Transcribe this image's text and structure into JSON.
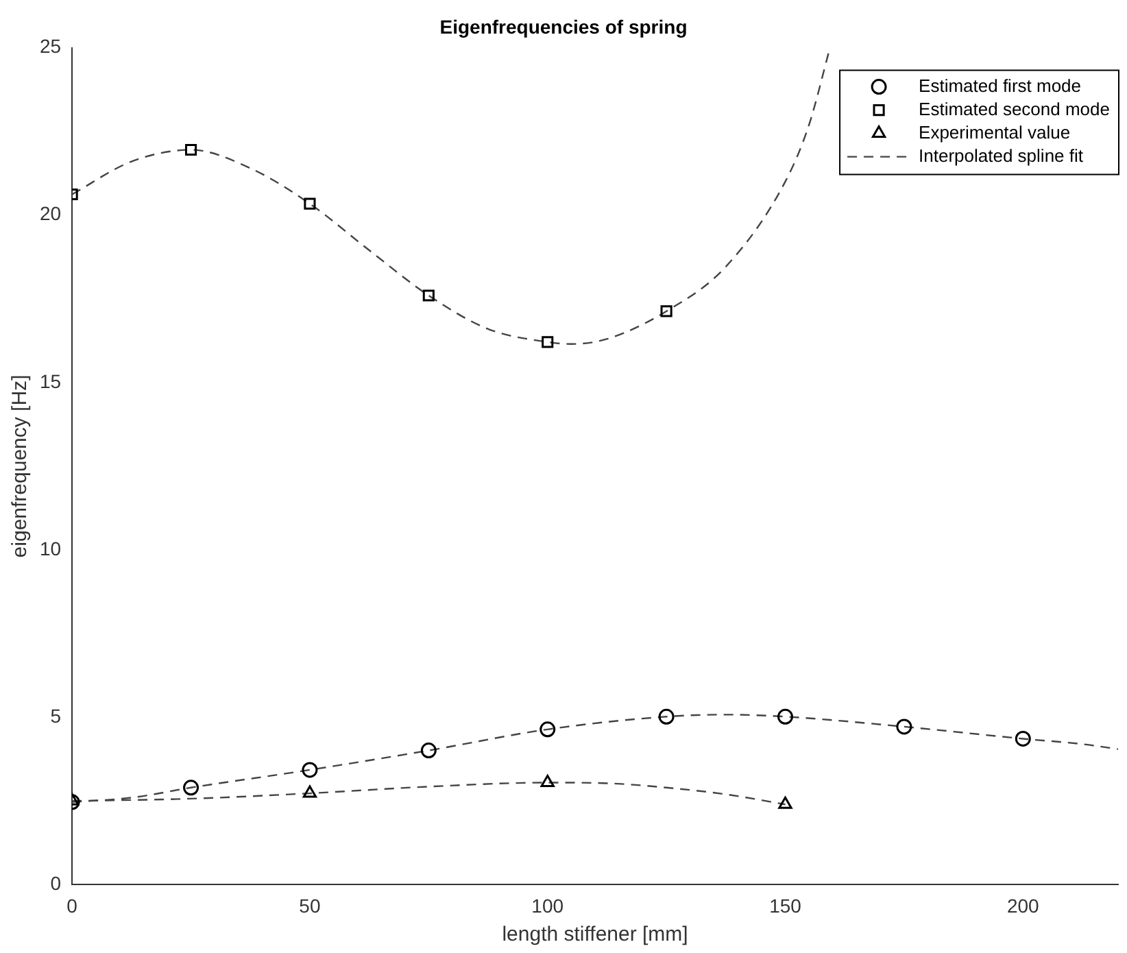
{
  "chart_data": {
    "type": "scatter",
    "title": "Eigenfrequencies of spring",
    "xlabel": "length stiffener [mm]",
    "ylabel": "eigenfrequency [Hz]",
    "xlim": [
      0,
      220
    ],
    "xticks": [
      0,
      50,
      100,
      150,
      200
    ],
    "ylim": [
      0,
      25
    ],
    "yticks": [
      0,
      5,
      10,
      15,
      20,
      25
    ],
    "grid": false,
    "legend": "top right",
    "series": [
      {
        "name": "Estimated first mode",
        "marker": "circle",
        "color": "#000000",
        "x": [
          0,
          25,
          50,
          75,
          100,
          125,
          150,
          175,
          200
        ],
        "values": [
          2.47,
          2.9,
          3.43,
          4.01,
          4.64,
          5.02,
          5.02,
          4.72,
          4.36
        ]
      },
      {
        "name": "Estimated second mode",
        "marker": "square",
        "color": "#000000",
        "x": [
          0,
          25,
          50,
          75,
          100,
          125
        ],
        "values": [
          20.62,
          21.95,
          20.34,
          17.6,
          16.21,
          17.13
        ]
      },
      {
        "name": "Experimental value",
        "marker": "triangle",
        "color": "#000000",
        "x": [
          0,
          50,
          100,
          150
        ],
        "values": [
          2.5,
          2.73,
          3.05,
          2.4
        ]
      },
      {
        "name": "Interpolated spline fit",
        "type": "line",
        "marker": "none",
        "line_style": "dashed",
        "color": "#444444",
        "x": [
          0,
          12.5,
          25,
          37.5,
          50,
          62.5,
          75,
          87.5,
          100,
          105,
          112.5,
          125,
          137.5,
          150,
          155,
          159.4
        ],
        "values": [
          20.62,
          21.6,
          21.95,
          21.4,
          20.34,
          18.95,
          17.6,
          16.6,
          16.21,
          16.15,
          16.3,
          17.13,
          18.46,
          21.0,
          22.7,
          25
        ]
      },
      {
        "type": "line",
        "marker": "none",
        "line_style": "dashed",
        "color": "#444444",
        "x": [
          0,
          12.5,
          25,
          50,
          75,
          100,
          125,
          137.5,
          150,
          175,
          200,
          212.5,
          220
        ],
        "values": [
          2.47,
          2.6,
          2.9,
          3.43,
          4.01,
          4.64,
          5.02,
          5.08,
          5.02,
          4.72,
          4.36,
          4.2,
          4.05
        ]
      },
      {
        "type": "line",
        "marker": "none",
        "line_style": "dashed",
        "color": "#444444",
        "x": [
          0,
          25,
          50,
          75,
          100,
          112.5,
          125,
          137.5,
          150
        ],
        "values": [
          2.5,
          2.57,
          2.73,
          2.93,
          3.05,
          3.03,
          2.9,
          2.7,
          2.4
        ]
      }
    ]
  }
}
